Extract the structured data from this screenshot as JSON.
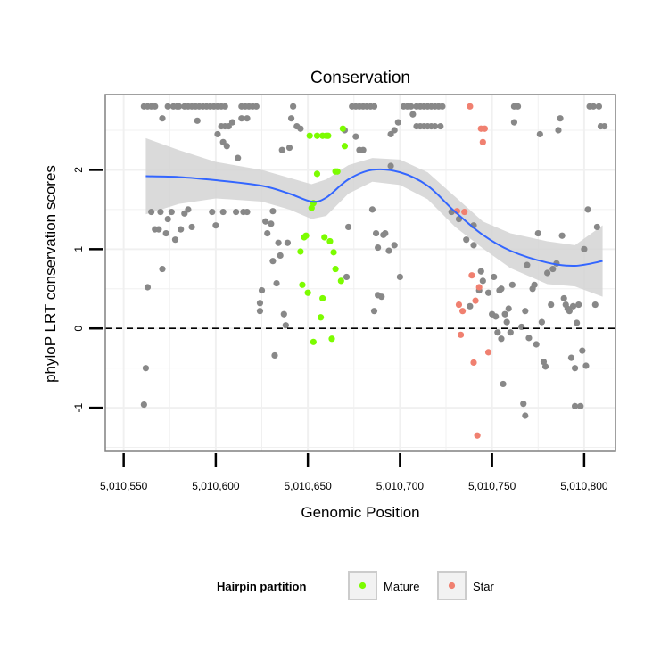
{
  "chart_data": {
    "type": "scatter",
    "title": "Conservation",
    "xlabel": "Genomic Position",
    "ylabel": "phyloP LRT conservation scores",
    "xlim": [
      5010540,
      5010817
    ],
    "ylim": [
      -1.55,
      2.95
    ],
    "x_ticks": [
      5010550,
      5010600,
      5010650,
      5010700,
      5010750,
      5010800
    ],
    "x_tick_labels": [
      "5,010,550",
      "5,010,600",
      "5,010,650",
      "5,010,700",
      "5,010,750",
      "5,010,800"
    ],
    "y_ticks": [
      -1,
      0,
      1,
      2
    ],
    "y_tick_labels": [
      "-1",
      "0",
      "1",
      "2"
    ],
    "grid": true,
    "panel_background": "#ffffff",
    "grid_color": "#f0f0f0",
    "reference_line": {
      "y": 0,
      "style": "dashed",
      "color": "#000000"
    },
    "legend": {
      "title": "Hairpin partition",
      "position": "bottom",
      "entries": [
        {
          "label": "Mature",
          "color": "#7cfc00"
        },
        {
          "label": "Star",
          "color": "#f08070"
        }
      ]
    },
    "series": [
      {
        "group": "other",
        "color": "#888888",
        "points": [
          [
            5010561,
            -0.96
          ],
          [
            5010562,
            -0.5
          ],
          [
            5010563,
            0.52
          ],
          [
            5010561,
            2.8
          ],
          [
            5010563,
            2.8
          ],
          [
            5010565,
            2.8
          ],
          [
            5010567,
            2.8
          ],
          [
            5010565,
            1.47
          ],
          [
            5010567,
            1.25
          ],
          [
            5010569,
            1.25
          ],
          [
            5010570,
            1.47
          ],
          [
            5010571,
            0.75
          ],
          [
            5010573,
            1.2
          ],
          [
            5010574,
            1.38
          ],
          [
            5010576,
            1.47
          ],
          [
            5010574,
            2.8
          ],
          [
            5010577,
            2.8
          ],
          [
            5010579,
            2.8
          ],
          [
            5010571,
            2.65
          ],
          [
            5010578,
            1.12
          ],
          [
            5010581,
            1.25
          ],
          [
            5010583,
            1.45
          ],
          [
            5010585,
            1.5
          ],
          [
            5010587,
            1.28
          ],
          [
            5010580,
            2.8
          ],
          [
            5010583,
            2.8
          ],
          [
            5010585,
            2.8
          ],
          [
            5010587,
            2.8
          ],
          [
            5010589,
            2.8
          ],
          [
            5010591,
            2.8
          ],
          [
            5010593,
            2.8
          ],
          [
            5010595,
            2.8
          ],
          [
            5010597,
            2.8
          ],
          [
            5010599,
            2.8
          ],
          [
            5010601,
            2.8
          ],
          [
            5010603,
            2.8
          ],
          [
            5010605,
            2.8
          ],
          [
            5010590,
            2.62
          ],
          [
            5010601,
            2.45
          ],
          [
            5010603,
            2.55
          ],
          [
            5010605,
            2.55
          ],
          [
            5010607,
            2.55
          ],
          [
            5010609,
            2.6
          ],
          [
            5010604,
            2.35
          ],
          [
            5010606,
            2.3
          ],
          [
            5010598,
            1.47
          ],
          [
            5010600,
            1.3
          ],
          [
            5010604,
            1.47
          ],
          [
            5010611,
            1.47
          ],
          [
            5010614,
            2.8
          ],
          [
            5010616,
            2.8
          ],
          [
            5010618,
            2.8
          ],
          [
            5010620,
            2.8
          ],
          [
            5010622,
            2.8
          ],
          [
            5010614,
            2.65
          ],
          [
            5010617,
            2.65
          ],
          [
            5010615,
            1.47
          ],
          [
            5010617,
            1.47
          ],
          [
            5010612,
            2.15
          ],
          [
            5010624,
            0.32
          ],
          [
            5010625,
            0.48
          ],
          [
            5010624,
            0.22
          ],
          [
            5010627,
            1.35
          ],
          [
            5010628,
            1.2
          ],
          [
            5010630,
            1.32
          ],
          [
            5010631,
            1.48
          ],
          [
            5010631,
            0.85
          ],
          [
            5010632,
            -0.34
          ],
          [
            5010633,
            0.57
          ],
          [
            5010634,
            1.08
          ],
          [
            5010635,
            0.92
          ],
          [
            5010636,
            2.25
          ],
          [
            5010637,
            0.18
          ],
          [
            5010638,
            0.04
          ],
          [
            5010639,
            1.08
          ],
          [
            5010640,
            2.28
          ],
          [
            5010641,
            2.65
          ],
          [
            5010642,
            2.8
          ],
          [
            5010644,
            2.55
          ],
          [
            5010646,
            2.52
          ],
          [
            5010670,
            2.5
          ],
          [
            5010671,
            0.65
          ],
          [
            5010672,
            1.28
          ],
          [
            5010674,
            2.8
          ],
          [
            5010676,
            2.8
          ],
          [
            5010678,
            2.8
          ],
          [
            5010680,
            2.8
          ],
          [
            5010682,
            2.8
          ],
          [
            5010684,
            2.8
          ],
          [
            5010686,
            2.8
          ],
          [
            5010676,
            2.42
          ],
          [
            5010678,
            2.25
          ],
          [
            5010680,
            2.25
          ],
          [
            5010685,
            1.5
          ],
          [
            5010686,
            0.22
          ],
          [
            5010687,
            1.2
          ],
          [
            5010688,
            0.42
          ],
          [
            5010688,
            1.02
          ],
          [
            5010690,
            0.4
          ],
          [
            5010691,
            1.18
          ],
          [
            5010692,
            1.2
          ],
          [
            5010694,
            0.98
          ],
          [
            5010695,
            2.45
          ],
          [
            5010695,
            2.05
          ],
          [
            5010697,
            2.5
          ],
          [
            5010697,
            1.05
          ],
          [
            5010699,
            2.6
          ],
          [
            5010700,
            0.65
          ],
          [
            5010702,
            2.8
          ],
          [
            5010704,
            2.8
          ],
          [
            5010706,
            2.8
          ],
          [
            5010707,
            2.7
          ],
          [
            5010709,
            2.8
          ],
          [
            5010711,
            2.8
          ],
          [
            5010713,
            2.8
          ],
          [
            5010715,
            2.8
          ],
          [
            5010717,
            2.8
          ],
          [
            5010719,
            2.8
          ],
          [
            5010721,
            2.8
          ],
          [
            5010723,
            2.8
          ],
          [
            5010709,
            2.55
          ],
          [
            5010711,
            2.55
          ],
          [
            5010713,
            2.55
          ],
          [
            5010715,
            2.55
          ],
          [
            5010717,
            2.55
          ],
          [
            5010719,
            2.55
          ],
          [
            5010722,
            2.55
          ],
          [
            5010728,
            1.47
          ],
          [
            5010732,
            1.38
          ],
          [
            5010736,
            1.12
          ],
          [
            5010738,
            0.28
          ],
          [
            5010740,
            1.05
          ],
          [
            5010740,
            1.3
          ],
          [
            5010743,
            0.48
          ],
          [
            5010744,
            0.72
          ],
          [
            5010745,
            0.6
          ],
          [
            5010748,
            0.45
          ],
          [
            5010750,
            0.18
          ],
          [
            5010751,
            0.65
          ],
          [
            5010752,
            0.15
          ],
          [
            5010753,
            -0.05
          ],
          [
            5010754,
            0.48
          ],
          [
            5010755,
            0.5
          ],
          [
            5010755,
            -0.13
          ],
          [
            5010756,
            -0.7
          ],
          [
            5010757,
            0.18
          ],
          [
            5010758,
            0.08
          ],
          [
            5010759,
            0.25
          ],
          [
            5010760,
            -0.05
          ],
          [
            5010761,
            0.55
          ],
          [
            5010762,
            2.8
          ],
          [
            5010764,
            2.8
          ],
          [
            5010762,
            2.6
          ],
          [
            5010766,
            0.02
          ],
          [
            5010767,
            -0.95
          ],
          [
            5010768,
            0.22
          ],
          [
            5010768,
            -1.1
          ],
          [
            5010769,
            0.8
          ],
          [
            5010770,
            -0.12
          ],
          [
            5010772,
            0.5
          ],
          [
            5010773,
            0.55
          ],
          [
            5010774,
            -0.2
          ],
          [
            5010775,
            1.2
          ],
          [
            5010776,
            2.45
          ],
          [
            5010777,
            0.08
          ],
          [
            5010778,
            -0.42
          ],
          [
            5010779,
            -0.48
          ],
          [
            5010780,
            0.7
          ],
          [
            5010782,
            0.3
          ],
          [
            5010783,
            0.75
          ],
          [
            5010785,
            0.82
          ],
          [
            5010786,
            2.5
          ],
          [
            5010787,
            2.65
          ],
          [
            5010788,
            1.17
          ],
          [
            5010789,
            0.38
          ],
          [
            5010790,
            0.3
          ],
          [
            5010791,
            0.25
          ],
          [
            5010792,
            0.22
          ],
          [
            5010793,
            -0.37
          ],
          [
            5010794,
            0.28
          ],
          [
            5010795,
            -0.5
          ],
          [
            5010796,
            0.07
          ],
          [
            5010797,
            0.3
          ],
          [
            5010798,
            -0.98
          ],
          [
            5010799,
            -0.28
          ],
          [
            5010800,
            1.0
          ],
          [
            5010801,
            -0.47
          ],
          [
            5010802,
            1.5
          ],
          [
            5010803,
            2.8
          ],
          [
            5010805,
            2.8
          ],
          [
            5010806,
            0.3
          ],
          [
            5010807,
            1.28
          ],
          [
            5010808,
            2.8
          ],
          [
            5010809,
            2.55
          ],
          [
            5010811,
            2.55
          ],
          [
            5010795,
            -0.98
          ]
        ]
      },
      {
        "group": "Mature",
        "color": "#7cfc00",
        "points": [
          [
            5010646,
            0.97
          ],
          [
            5010647,
            0.55
          ],
          [
            5010648,
            1.15
          ],
          [
            5010649,
            1.17
          ],
          [
            5010650,
            0.45
          ],
          [
            5010651,
            2.43
          ],
          [
            5010652,
            1.52
          ],
          [
            5010653,
            -0.17
          ],
          [
            5010653,
            1.58
          ],
          [
            5010655,
            1.95
          ],
          [
            5010655,
            2.43
          ],
          [
            5010657,
            0.14
          ],
          [
            5010658,
            2.43
          ],
          [
            5010658,
            0.38
          ],
          [
            5010659,
            1.15
          ],
          [
            5010660,
            2.43
          ],
          [
            5010661,
            2.43
          ],
          [
            5010662,
            1.1
          ],
          [
            5010663,
            -0.13
          ],
          [
            5010664,
            0.96
          ],
          [
            5010665,
            0.75
          ],
          [
            5010665,
            1.98
          ],
          [
            5010666,
            1.98
          ],
          [
            5010668,
            0.6
          ],
          [
            5010669,
            2.52
          ],
          [
            5010670,
            2.3
          ]
        ]
      },
      {
        "group": "Star",
        "color": "#f08070",
        "points": [
          [
            5010731,
            1.48
          ],
          [
            5010732,
            0.3
          ],
          [
            5010733,
            -0.08
          ],
          [
            5010734,
            0.22
          ],
          [
            5010735,
            1.47
          ],
          [
            5010738,
            2.8
          ],
          [
            5010739,
            0.67
          ],
          [
            5010740,
            -0.43
          ],
          [
            5010741,
            0.35
          ],
          [
            5010742,
            -1.35
          ],
          [
            5010743,
            0.52
          ],
          [
            5010744,
            2.52
          ],
          [
            5010745,
            2.35
          ],
          [
            5010746,
            2.52
          ],
          [
            5010748,
            -0.3
          ]
        ]
      },
      {
        "group": "smooth",
        "color": "#3366ff",
        "band_color": "#d3d3d3",
        "points": [
          [
            5010562,
            1.92
          ],
          [
            5010580,
            1.91
          ],
          [
            5010600,
            1.87
          ],
          [
            5010625,
            1.8
          ],
          [
            5010640,
            1.7
          ],
          [
            5010652,
            1.6
          ],
          [
            5010660,
            1.65
          ],
          [
            5010672,
            1.88
          ],
          [
            5010685,
            2.0
          ],
          [
            5010700,
            1.97
          ],
          [
            5010715,
            1.8
          ],
          [
            5010730,
            1.47
          ],
          [
            5010745,
            1.18
          ],
          [
            5010760,
            0.98
          ],
          [
            5010780,
            0.83
          ],
          [
            5010795,
            0.79
          ],
          [
            5010810,
            0.85
          ]
        ],
        "band_upper": [
          2.4,
          2.25,
          2.1,
          2.0,
          1.9,
          1.82,
          1.88,
          2.06,
          2.15,
          2.13,
          1.97,
          1.66,
          1.35,
          1.2,
          1.1,
          1.05,
          1.3
        ],
        "band_lower": [
          1.44,
          1.57,
          1.64,
          1.6,
          1.5,
          1.38,
          1.42,
          1.7,
          1.85,
          1.81,
          1.63,
          1.28,
          1.01,
          0.76,
          0.56,
          0.53,
          0.4
        ]
      }
    ]
  }
}
